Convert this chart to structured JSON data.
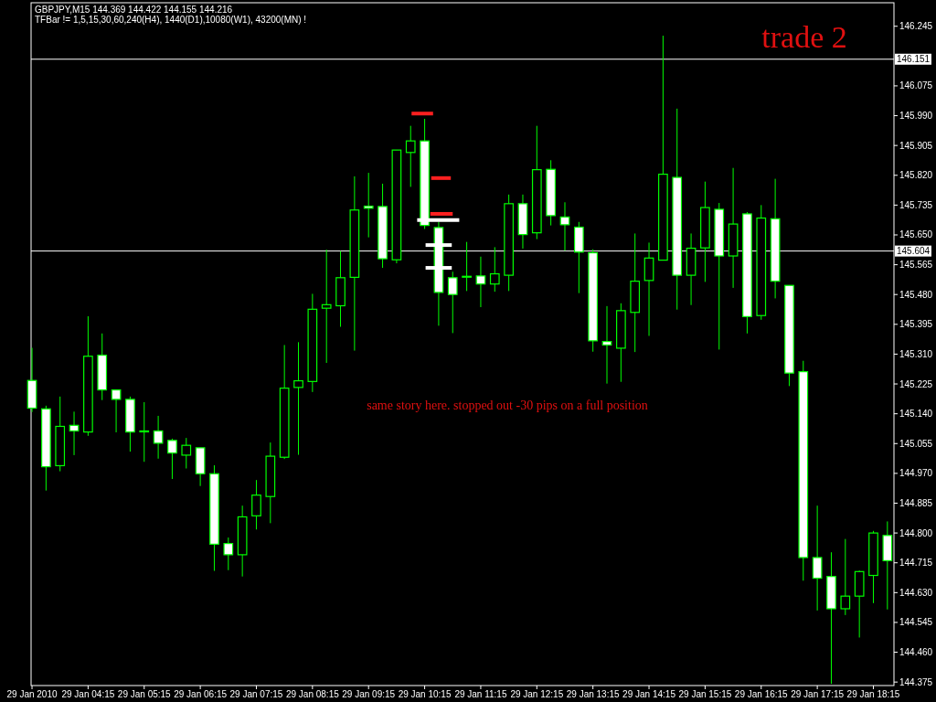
{
  "chart_data": {
    "type": "candlestick",
    "title": "GBPJPY,M15  144.369 144.422 144.155 144.216",
    "subtitle": "TFBar != 1,5,15,30,60,240(H4), 1440(D1),10080(W1), 43200(MN) !",
    "annotations": [
      "trade 2",
      "same story here. stopped out -30 pips on a full position"
    ],
    "color": "#00ff00",
    "x": [
      "2010-01-29T03:15",
      "2010-01-29T03:30",
      "2010-01-29T03:45",
      "2010-01-29T04:00",
      "2010-01-29T04:15",
      "2010-01-29T04:30",
      "2010-01-29T04:45",
      "2010-01-29T05:00",
      "2010-01-29T05:15",
      "2010-01-29T05:30",
      "2010-01-29T05:45",
      "2010-01-29T06:00",
      "2010-01-29T06:15",
      "2010-01-29T06:30",
      "2010-01-29T06:45",
      "2010-01-29T07:00",
      "2010-01-29T07:15",
      "2010-01-29T07:30",
      "2010-01-29T07:45",
      "2010-01-29T08:00",
      "2010-01-29T08:15",
      "2010-01-29T08:30",
      "2010-01-29T08:45",
      "2010-01-29T09:00",
      "2010-01-29T09:15",
      "2010-01-29T09:30",
      "2010-01-29T09:45",
      "2010-01-29T10:00",
      "2010-01-29T10:15",
      "2010-01-29T10:30",
      "2010-01-29T10:45",
      "2010-01-29T11:00",
      "2010-01-29T11:15",
      "2010-01-29T11:30",
      "2010-01-29T11:45",
      "2010-01-29T12:00",
      "2010-01-29T12:15",
      "2010-01-29T12:30",
      "2010-01-29T12:45",
      "2010-01-29T13:00",
      "2010-01-29T13:15",
      "2010-01-29T13:30",
      "2010-01-29T13:45",
      "2010-01-29T14:00",
      "2010-01-29T14:15",
      "2010-01-29T14:30",
      "2010-01-29T14:45",
      "2010-01-29T15:00",
      "2010-01-29T15:15",
      "2010-01-29T15:30",
      "2010-01-29T15:45",
      "2010-01-29T16:00",
      "2010-01-29T16:15",
      "2010-01-29T16:30",
      "2010-01-29T16:45",
      "2010-01-29T17:00",
      "2010-01-29T17:15",
      "2010-01-29T17:30",
      "2010-01-29T17:45",
      "2010-01-29T18:00",
      "2010-01-29T18:15",
      "2010-01-29T18:30"
    ],
    "ohlc": [
      [
        145.235,
        145.328,
        145.145,
        145.156
      ],
      [
        145.154,
        145.163,
        144.921,
        144.989
      ],
      [
        144.992,
        145.189,
        144.976,
        145.104
      ],
      [
        145.107,
        145.146,
        145.022,
        145.091
      ],
      [
        145.088,
        145.418,
        145.077,
        145.304
      ],
      [
        145.307,
        145.369,
        145.179,
        145.208
      ],
      [
        145.208,
        145.208,
        145.087,
        145.181
      ],
      [
        145.181,
        145.189,
        145.032,
        145.088
      ],
      [
        145.091,
        145.173,
        145.003,
        145.091
      ],
      [
        145.091,
        145.134,
        145.012,
        145.056
      ],
      [
        145.064,
        145.069,
        144.954,
        145.028
      ],
      [
        145.022,
        145.071,
        144.984,
        145.05
      ],
      [
        145.043,
        145.043,
        144.934,
        144.969
      ],
      [
        144.969,
        144.993,
        144.692,
        144.768
      ],
      [
        144.77,
        144.787,
        144.694,
        144.738
      ],
      [
        144.738,
        144.878,
        144.676,
        144.846
      ],
      [
        144.849,
        144.951,
        144.81,
        144.908
      ],
      [
        144.904,
        145.058,
        144.828,
        145.019
      ],
      [
        145.016,
        145.336,
        145.011,
        145.213
      ],
      [
        145.215,
        145.344,
        145.023,
        145.234
      ],
      [
        145.232,
        145.482,
        145.202,
        145.438
      ],
      [
        145.441,
        145.608,
        145.285,
        145.451
      ],
      [
        145.448,
        145.604,
        145.388,
        145.528
      ],
      [
        145.529,
        145.817,
        145.32,
        145.721
      ],
      [
        145.732,
        145.827,
        145.643,
        145.726
      ],
      [
        145.731,
        145.796,
        145.556,
        145.582
      ],
      [
        145.579,
        145.892,
        145.569,
        145.892
      ],
      [
        145.885,
        145.961,
        145.787,
        145.918
      ],
      [
        145.918,
        145.981,
        145.667,
        145.677
      ],
      [
        145.671,
        145.687,
        145.391,
        145.486
      ],
      [
        145.528,
        145.545,
        145.37,
        145.48
      ],
      [
        145.532,
        145.63,
        145.49,
        145.532
      ],
      [
        145.533,
        145.588,
        145.444,
        145.51
      ],
      [
        145.51,
        145.615,
        145.488,
        145.539
      ],
      [
        145.535,
        145.765,
        145.49,
        145.739
      ],
      [
        145.739,
        145.765,
        145.611,
        145.651
      ],
      [
        145.656,
        145.961,
        145.638,
        145.836
      ],
      [
        145.837,
        145.863,
        145.677,
        145.705
      ],
      [
        145.701,
        145.743,
        145.605,
        145.679
      ],
      [
        145.672,
        145.687,
        145.484,
        145.601
      ],
      [
        145.599,
        145.609,
        145.317,
        145.348
      ],
      [
        145.346,
        145.447,
        145.226,
        145.336
      ],
      [
        145.327,
        145.455,
        145.231,
        145.434
      ],
      [
        145.429,
        145.654,
        145.316,
        145.518
      ],
      [
        145.52,
        145.628,
        145.362,
        145.584
      ],
      [
        145.578,
        146.218,
        145.578,
        145.823
      ],
      [
        145.814,
        146.01,
        145.437,
        145.535
      ],
      [
        145.535,
        145.654,
        145.45,
        145.612
      ],
      [
        145.613,
        145.802,
        145.516,
        145.728
      ],
      [
        145.723,
        145.741,
        145.323,
        145.59
      ],
      [
        145.59,
        145.841,
        145.499,
        145.681
      ],
      [
        145.71,
        145.715,
        145.369,
        145.417
      ],
      [
        145.42,
        145.735,
        145.408,
        145.698
      ],
      [
        145.696,
        145.81,
        145.469,
        145.518
      ],
      [
        145.506,
        145.506,
        145.219,
        145.256
      ],
      [
        145.26,
        145.291,
        144.664,
        144.73
      ],
      [
        144.73,
        144.878,
        144.579,
        144.671
      ],
      [
        144.676,
        144.745,
        144.37,
        144.584
      ],
      [
        144.584,
        144.783,
        144.566,
        144.62
      ],
      [
        144.62,
        144.693,
        144.502,
        144.69
      ],
      [
        144.679,
        144.806,
        144.6,
        144.8
      ],
      [
        144.793,
        144.833,
        144.582,
        144.721
      ]
    ],
    "series": [
      {
        "type": "line",
        "color": "#ff2020",
        "x": [
          "2010-01-29T10:01",
          "2010-01-29T10:24"
        ],
        "values": [
          145.996,
          145.996
        ]
      },
      {
        "type": "line",
        "color": "#ff2020",
        "x": [
          "2010-01-29T10:22",
          "2010-01-29T10:43"
        ],
        "values": [
          145.812,
          145.812
        ]
      },
      {
        "type": "line",
        "color": "#ff2020",
        "x": [
          "2010-01-29T10:21",
          "2010-01-29T10:45"
        ],
        "values": [
          145.71,
          145.71
        ]
      },
      {
        "type": "line",
        "color": "#ffffff",
        "x": [
          "2010-01-29T10:07",
          "2010-01-29T10:52"
        ],
        "values": [
          145.692,
          145.692
        ]
      },
      {
        "type": "line",
        "color": "#ffffff",
        "x": [
          "2010-01-29T10:16",
          "2010-01-29T10:44"
        ],
        "values": [
          145.621,
          145.621
        ]
      },
      {
        "type": "line",
        "color": "#ffffff",
        "x": [
          "2010-01-29T10:16",
          "2010-01-29T10:44"
        ],
        "values": [
          145.556,
          145.556
        ]
      }
    ],
    "xlim": [
      "2010-01-29T03:14",
      "2010-01-29T18:37"
    ],
    "xticks": [
      {
        "value": "2010-01-29T03:15",
        "label": "29 Jan 2010"
      },
      {
        "value": "2010-01-29T04:15",
        "label": "29 Jan 04:15"
      },
      {
        "value": "2010-01-29T05:15",
        "label": "29 Jan 05:15"
      },
      {
        "value": "2010-01-29T06:15",
        "label": "29 Jan 06:15"
      },
      {
        "value": "2010-01-29T07:15",
        "label": "29 Jan 07:15"
      },
      {
        "value": "2010-01-29T08:15",
        "label": "29 Jan 08:15"
      },
      {
        "value": "2010-01-29T09:15",
        "label": "29 Jan 09:15"
      },
      {
        "value": "2010-01-29T10:15",
        "label": "29 Jan 10:15"
      },
      {
        "value": "2010-01-29T11:15",
        "label": "29 Jan 11:15"
      },
      {
        "value": "2010-01-29T12:15",
        "label": "29 Jan 12:15"
      },
      {
        "value": "2010-01-29T13:15",
        "label": "29 Jan 13:15"
      },
      {
        "value": "2010-01-29T14:15",
        "label": "29 Jan 14:15"
      },
      {
        "value": "2010-01-29T15:15",
        "label": "29 Jan 15:15"
      },
      {
        "value": "2010-01-29T16:15",
        "label": "29 Jan 16:15"
      },
      {
        "value": "2010-01-29T17:15",
        "label": "29 Jan 17:15"
      },
      {
        "value": "2010-01-29T18:15",
        "label": "29 Jan 18:15"
      }
    ],
    "ylim": [
      144.365,
      146.312
    ],
    "yticks": [
      {
        "value": 146.245,
        "label": "146.245"
      },
      {
        "value": 146.075,
        "label": "146.075"
      },
      {
        "value": 145.99,
        "label": "145.990"
      },
      {
        "value": 145.905,
        "label": "145.905"
      },
      {
        "value": 145.82,
        "label": "145.820"
      },
      {
        "value": 145.735,
        "label": "145.735"
      },
      {
        "value": 145.65,
        "label": "145.650"
      },
      {
        "value": 145.565,
        "label": "145.565"
      },
      {
        "value": 145.48,
        "label": "145.480"
      },
      {
        "value": 145.395,
        "label": "145.395"
      },
      {
        "value": 145.31,
        "label": "145.310"
      },
      {
        "value": 145.225,
        "label": "145.225"
      },
      {
        "value": 145.14,
        "label": "145.140"
      },
      {
        "value": 145.055,
        "label": "145.055"
      },
      {
        "value": 144.97,
        "label": "144.970"
      },
      {
        "value": 144.885,
        "label": "144.885"
      },
      {
        "value": 144.8,
        "label": "144.800"
      },
      {
        "value": 144.715,
        "label": "144.715"
      },
      {
        "value": 144.63,
        "label": "144.630"
      },
      {
        "value": 144.545,
        "label": "144.545"
      },
      {
        "value": 144.46,
        "label": "144.460"
      },
      {
        "value": 144.375,
        "label": "144.375"
      }
    ],
    "ref_lines": [
      {
        "axis": "y",
        "value": 146.151,
        "label": "146.151",
        "color": "#ffffff"
      },
      {
        "axis": "y",
        "value": 145.604,
        "label": "145.604",
        "color": "#ffffff"
      }
    ]
  }
}
